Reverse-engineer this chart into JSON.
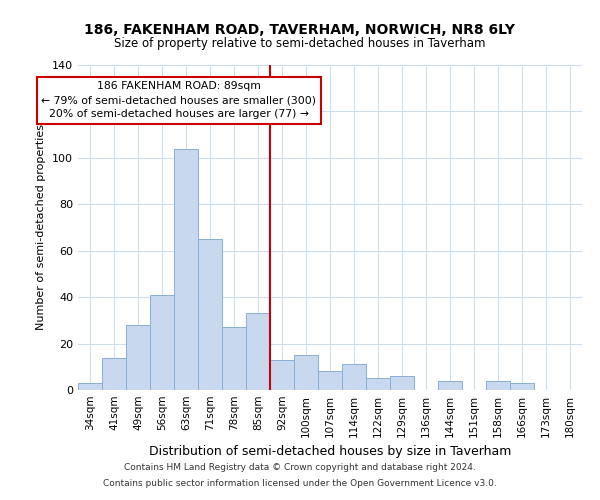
{
  "title": "186, FAKENHAM ROAD, TAVERHAM, NORWICH, NR8 6LY",
  "subtitle": "Size of property relative to semi-detached houses in Taverham",
  "xlabel": "Distribution of semi-detached houses by size in Taverham",
  "ylabel": "Number of semi-detached properties",
  "bar_labels": [
    "34sqm",
    "41sqm",
    "49sqm",
    "56sqm",
    "63sqm",
    "71sqm",
    "78sqm",
    "85sqm",
    "92sqm",
    "100sqm",
    "107sqm",
    "114sqm",
    "122sqm",
    "129sqm",
    "136sqm",
    "144sqm",
    "151sqm",
    "158sqm",
    "166sqm",
    "173sqm",
    "180sqm"
  ],
  "bar_values": [
    3,
    14,
    28,
    41,
    104,
    65,
    27,
    33,
    13,
    15,
    8,
    11,
    5,
    6,
    0,
    4,
    0,
    4,
    3,
    0,
    0
  ],
  "bar_color": "#c8d8ee",
  "bar_edge_color": "#8aafd4",
  "reference_line_color": "#cc0000",
  "ylim": [
    0,
    140
  ],
  "yticks": [
    0,
    20,
    40,
    60,
    80,
    100,
    120,
    140
  ],
  "annotation_title": "186 FAKENHAM ROAD: 89sqm",
  "annotation_line1": "← 79% of semi-detached houses are smaller (300)",
  "annotation_line2": "20% of semi-detached houses are larger (77) →",
  "footnote1": "Contains HM Land Registry data © Crown copyright and database right 2024.",
  "footnote2": "Contains public sector information licensed under the Open Government Licence v3.0.",
  "background_color": "#ffffff",
  "grid_color": "#ccddee"
}
